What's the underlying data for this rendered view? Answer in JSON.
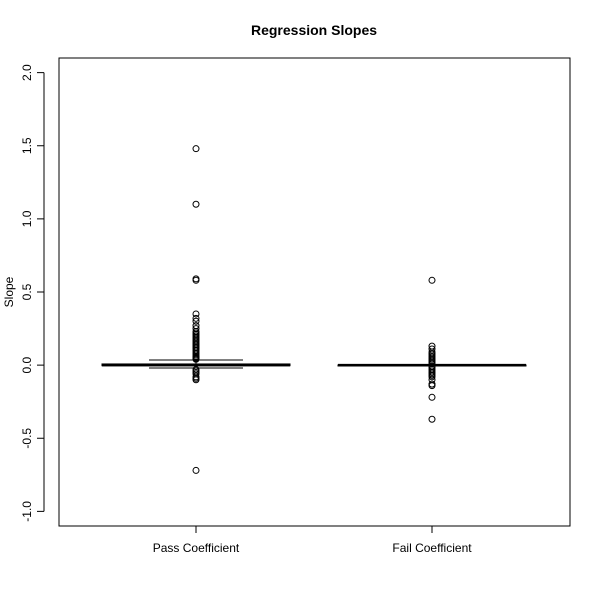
{
  "chart_data": {
    "type": "box",
    "title": "Regression Slopes",
    "xlabel": "",
    "ylabel": "Slope",
    "ylim": [
      -1.1,
      2.1
    ],
    "yticks": [
      -1.0,
      -0.5,
      0.0,
      0.5,
      1.0,
      1.5,
      2.0
    ],
    "ytick_labels": [
      "-1.0",
      "-0.5",
      "0.0",
      "0.5",
      "1.0",
      "1.5",
      "2.0"
    ],
    "categories": [
      "Pass Coefficient",
      "Fail Coefficient"
    ],
    "grid": false,
    "boxes": [
      {
        "name": "Pass Coefficient",
        "whisker_low": -0.02,
        "q1": -0.004,
        "median": 0.0,
        "q3": 0.008,
        "whisker_high": 0.035,
        "outliers": [
          1.48,
          1.1,
          0.59,
          0.58,
          0.35,
          0.32,
          0.3,
          0.27,
          0.25,
          0.23,
          0.22,
          0.21,
          0.2,
          0.19,
          0.18,
          0.17,
          0.16,
          0.15,
          0.14,
          0.13,
          0.12,
          0.11,
          0.1,
          0.09,
          0.08,
          0.07,
          0.06,
          0.055,
          0.05,
          0.045,
          0.04,
          -0.03,
          -0.04,
          -0.05,
          -0.06,
          -0.08,
          -0.09,
          -0.1,
          -0.72
        ]
      },
      {
        "name": "Fail Coefficient",
        "whisker_low": -0.002,
        "q1": -0.001,
        "median": 0.0,
        "q3": 0.001,
        "whisker_high": 0.002,
        "outliers": [
          0.58,
          0.13,
          0.11,
          0.09,
          0.08,
          0.07,
          0.06,
          0.05,
          0.04,
          0.03,
          0.02,
          0.01,
          -0.01,
          -0.02,
          -0.03,
          -0.04,
          -0.05,
          -0.06,
          -0.07,
          -0.08,
          -0.1,
          -0.13,
          -0.14,
          -0.22,
          -0.37
        ]
      }
    ]
  }
}
